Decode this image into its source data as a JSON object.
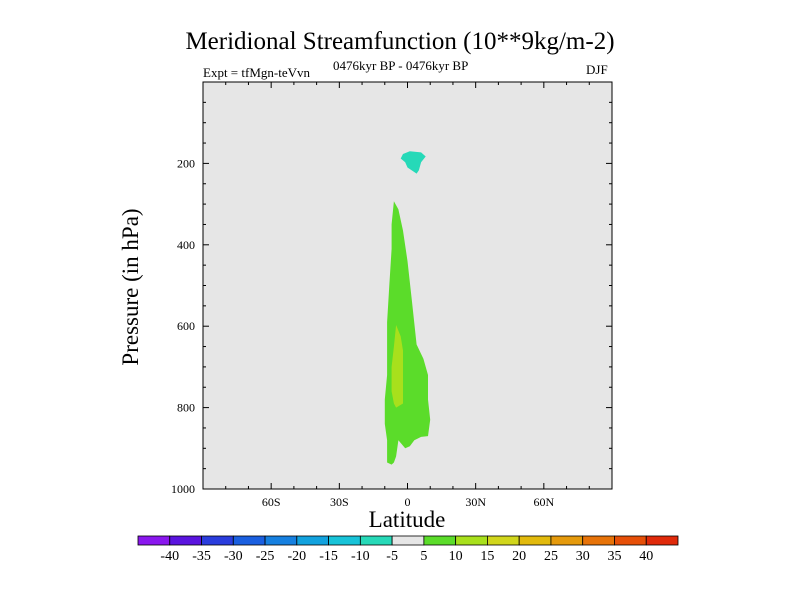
{
  "chart_data": {
    "type": "contour",
    "title": "Meridional Streamfunction (10**9kg/m-2)",
    "subtitle_left": "Expt = tfMgn-teVvn",
    "subtitle_center": "0476kyr BP - 0476kyr BP",
    "subtitle_right": "DJF",
    "xlabel": "Latitude",
    "ylabel": "Pressure (in hPa)",
    "xlim": [
      -90,
      90
    ],
    "ylim": [
      1000,
      0
    ],
    "x_ticks": [
      {
        "value": -60,
        "label": "60S"
      },
      {
        "value": -30,
        "label": "30S"
      },
      {
        "value": 0,
        "label": "0"
      },
      {
        "value": 30,
        "label": "30N"
      },
      {
        "value": 60,
        "label": "60N"
      }
    ],
    "y_ticks": [
      {
        "value": 200,
        "label": "200"
      },
      {
        "value": 400,
        "label": "400"
      },
      {
        "value": 600,
        "label": "600"
      },
      {
        "value": 800,
        "label": "800"
      },
      {
        "value": 1000,
        "label": "1000"
      }
    ],
    "background_color": "#e6e6e6",
    "contour_regions": [
      {
        "range": "-10 to -5",
        "color": "#26d9b8",
        "points": [
          [
            -2,
            177
          ],
          [
            1,
            170
          ],
          [
            6,
            173
          ],
          [
            8,
            183
          ],
          [
            6,
            197
          ],
          [
            5,
            217
          ],
          [
            4,
            225
          ],
          [
            0,
            210
          ],
          [
            -1,
            197
          ],
          [
            -3,
            188
          ]
        ]
      },
      {
        "range": "5 to 10",
        "color": "#5bdc2a",
        "points": [
          [
            -6,
            293
          ],
          [
            -4,
            313
          ],
          [
            -2,
            365
          ],
          [
            0,
            440
          ],
          [
            2,
            540
          ],
          [
            4,
            645
          ],
          [
            7,
            680
          ],
          [
            9,
            720
          ],
          [
            9,
            780
          ],
          [
            10,
            830
          ],
          [
            9,
            870
          ],
          [
            6,
            872
          ],
          [
            3,
            880
          ],
          [
            1,
            895
          ],
          [
            -1,
            900
          ],
          [
            -4,
            880
          ],
          [
            -5,
            920
          ],
          [
            -6,
            935
          ],
          [
            -7,
            940
          ],
          [
            -9,
            935
          ],
          [
            -9,
            910
          ],
          [
            -9,
            880
          ],
          [
            -10,
            840
          ],
          [
            -10,
            780
          ],
          [
            -9,
            720
          ],
          [
            -9,
            660
          ],
          [
            -9,
            590
          ],
          [
            -8,
            500
          ],
          [
            -7,
            410
          ],
          [
            -7,
            350
          ]
        ]
      },
      {
        "range": "10 to 15",
        "color": "#a8e01c",
        "points": [
          [
            -5,
            597
          ],
          [
            -3,
            625
          ],
          [
            -2,
            660
          ],
          [
            -2,
            700
          ],
          [
            -2,
            760
          ],
          [
            -2,
            790
          ],
          [
            -5,
            800
          ],
          [
            -6,
            790
          ],
          [
            -7,
            760
          ],
          [
            -7,
            700
          ],
          [
            -6,
            650
          ]
        ]
      }
    ],
    "colorbar": {
      "labels": [
        "-40",
        "-35",
        "-30",
        "-25",
        "-20",
        "-15",
        "-10",
        "-5",
        "5",
        "10",
        "15",
        "20",
        "25",
        "30",
        "35",
        "40"
      ],
      "colors": [
        "#8a17ee",
        "#5a14df",
        "#2a3ddd",
        "#1a5fe0",
        "#1680e0",
        "#12a2de",
        "#18c3d8",
        "#27d9b8",
        "#e6e6e6",
        "#5bdc2a",
        "#a8e01c",
        "#d1d61c",
        "#e2ba0d",
        "#e59a0c",
        "#e77309",
        "#e64f08",
        "#e02a0a"
      ]
    }
  }
}
